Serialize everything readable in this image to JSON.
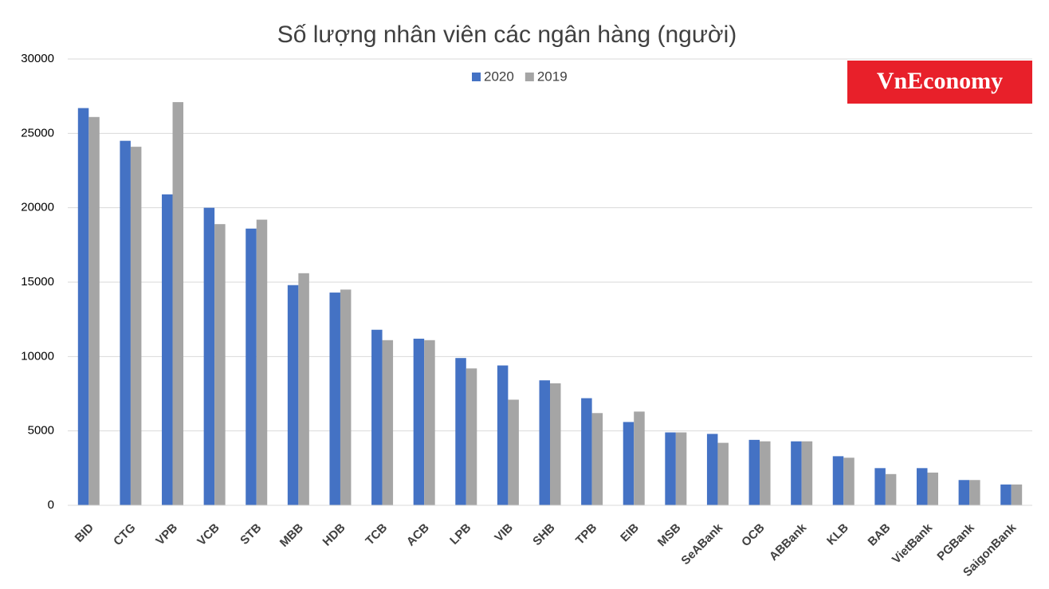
{
  "logo": "VnEconomy",
  "chart_data": {
    "type": "bar",
    "title": "Số lượng nhân viên các ngân hàng (người)",
    "categories": [
      "BID",
      "CTG",
      "VPB",
      "VCB",
      "STB",
      "MBB",
      "HDB",
      "TCB",
      "ACB",
      "LPB",
      "VIB",
      "SHB",
      "TPB",
      "EIB",
      "MSB",
      "SeABank",
      "OCB",
      "ABBank",
      "KLB",
      "BAB",
      "VietBank",
      "PGBank",
      "SaigonBank"
    ],
    "series": [
      {
        "name": "2020",
        "color": "#4472c4",
        "values": [
          26700,
          24500,
          20900,
          20000,
          18600,
          14800,
          14300,
          11800,
          11200,
          9900,
          9400,
          8400,
          7200,
          5600,
          4900,
          4800,
          4400,
          4300,
          3300,
          2500,
          2500,
          1700,
          1400
        ]
      },
      {
        "name": "2019",
        "color": "#a5a5a5",
        "values": [
          26100,
          24100,
          27100,
          18900,
          19200,
          15600,
          14500,
          11100,
          11100,
          9200,
          7100,
          8200,
          6200,
          6300,
          4900,
          4200,
          4300,
          4300,
          3200,
          2100,
          2200,
          1700,
          1400
        ]
      }
    ],
    "ylim": [
      0,
      30000
    ],
    "yticks": [
      0,
      5000,
      10000,
      15000,
      20000,
      25000,
      30000
    ],
    "grid": true,
    "legend": "top"
  }
}
